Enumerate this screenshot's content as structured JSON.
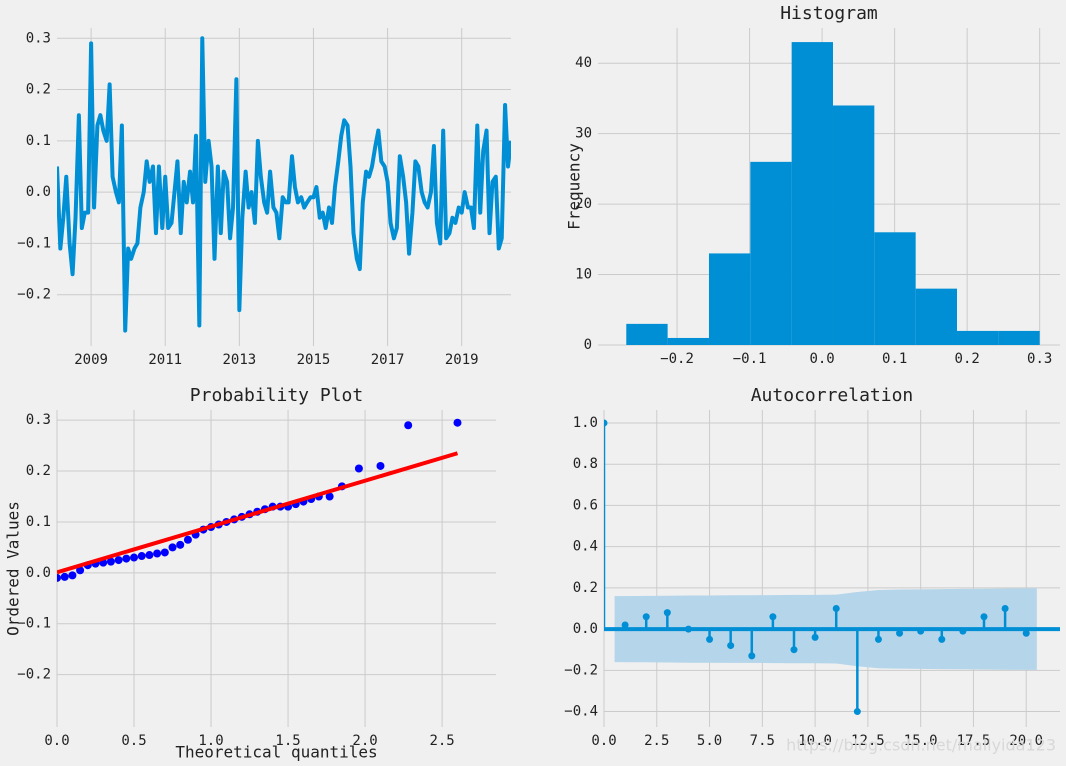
{
  "chart_data": [
    {
      "type": "line",
      "color": "#008fd5",
      "x": [
        2008.08,
        2008.17,
        2008.25,
        2008.33,
        2008.42,
        2008.5,
        2008.58,
        2008.67,
        2008.75,
        2008.83,
        2008.92,
        2009.0,
        2009.08,
        2009.17,
        2009.25,
        2009.33,
        2009.42,
        2009.5,
        2009.58,
        2009.67,
        2009.75,
        2009.83,
        2009.92,
        2010.0,
        2010.08,
        2010.17,
        2010.25,
        2010.33,
        2010.42,
        2010.5,
        2010.58,
        2010.67,
        2010.75,
        2010.83,
        2010.92,
        2011.0,
        2011.08,
        2011.17,
        2011.25,
        2011.33,
        2011.42,
        2011.5,
        2011.58,
        2011.67,
        2011.75,
        2011.83,
        2011.92,
        2012.0,
        2012.08,
        2012.17,
        2012.25,
        2012.33,
        2012.42,
        2012.5,
        2012.58,
        2012.67,
        2012.75,
        2012.83,
        2012.92,
        2013.0,
        2013.08,
        2013.17,
        2013.25,
        2013.33,
        2013.42,
        2013.5,
        2013.58,
        2013.67,
        2013.75,
        2013.83,
        2013.92,
        2014.0,
        2014.08,
        2014.17,
        2014.25,
        2014.33,
        2014.42,
        2014.5,
        2014.58,
        2014.67,
        2014.75,
        2014.83,
        2014.92,
        2015.0,
        2015.08,
        2015.17,
        2015.25,
        2015.33,
        2015.42,
        2015.5,
        2015.58,
        2015.67,
        2015.75,
        2015.83,
        2015.92,
        2016.0,
        2016.08,
        2016.17,
        2016.25,
        2016.33,
        2016.42,
        2016.5,
        2016.58,
        2016.67,
        2016.75,
        2016.83,
        2016.92,
        2017.0,
        2017.08,
        2017.17,
        2017.25,
        2017.33,
        2017.42,
        2017.5,
        2017.58,
        2017.67,
        2017.75,
        2017.83,
        2017.92,
        2018.0,
        2018.08,
        2018.17,
        2018.25,
        2018.33,
        2018.42,
        2018.5,
        2018.58,
        2018.67,
        2018.75,
        2018.83,
        2018.92,
        2019.0,
        2019.08,
        2019.17,
        2019.25,
        2019.33,
        2019.42,
        2019.5,
        2019.58,
        2019.67,
        2019.75,
        2019.83,
        2019.92,
        2020.0,
        2020.08,
        2020.17,
        2020.25,
        2020.33
      ],
      "values": [
        0.05,
        -0.11,
        -0.05,
        0.03,
        -0.1,
        -0.16,
        -0.05,
        0.15,
        -0.07,
        -0.04,
        -0.04,
        0.29,
        -0.03,
        0.13,
        0.15,
        0.12,
        0.1,
        0.21,
        0.03,
        0.0,
        -0.02,
        0.13,
        -0.27,
        -0.11,
        -0.13,
        -0.11,
        -0.1,
        -0.03,
        0.0,
        0.06,
        0.02,
        0.05,
        -0.08,
        0.05,
        -0.07,
        0.03,
        -0.07,
        -0.06,
        0.0,
        0.06,
        -0.08,
        0.02,
        -0.02,
        0.04,
        -0.02,
        0.11,
        -0.26,
        0.3,
        0.02,
        0.1,
        0.05,
        -0.13,
        0.05,
        -0.08,
        0.04,
        0.02,
        -0.09,
        -0.03,
        0.22,
        -0.23,
        -0.05,
        0.04,
        -0.03,
        0.0,
        -0.06,
        0.1,
        0.03,
        -0.02,
        -0.04,
        0.04,
        -0.03,
        -0.04,
        -0.09,
        -0.01,
        -0.02,
        -0.02,
        0.07,
        0.01,
        -0.02,
        -0.01,
        -0.03,
        -0.02,
        -0.01,
        -0.01,
        0.01,
        -0.05,
        -0.04,
        -0.07,
        -0.03,
        -0.06,
        0.01,
        0.06,
        0.11,
        0.14,
        0.13,
        0.05,
        -0.08,
        -0.13,
        -0.15,
        -0.02,
        0.04,
        0.03,
        0.05,
        0.09,
        0.12,
        0.06,
        0.05,
        0.02,
        -0.06,
        -0.09,
        -0.07,
        0.07,
        0.03,
        -0.02,
        -0.12,
        -0.04,
        0.06,
        0.05,
        0.0,
        -0.02,
        -0.03,
        0.0,
        0.09,
        -0.06,
        -0.1,
        0.12,
        -0.09,
        -0.08,
        -0.05,
        -0.06,
        -0.03,
        -0.04,
        0.0,
        -0.03,
        -0.03,
        -0.07,
        0.13,
        -0.04,
        0.08,
        0.12,
        -0.08,
        0.02,
        0.03,
        -0.11,
        -0.09,
        0.17,
        0.05,
        0.1
      ],
      "xlim": [
        2008.08,
        2020.33
      ],
      "ylim": [
        -0.3,
        0.32
      ],
      "xticks": [
        2009,
        2011,
        2013,
        2015,
        2017,
        2019
      ],
      "yticks": [
        {
          "value": -0.2,
          "label": "−0.2"
        },
        {
          "value": -0.1,
          "label": "−0.1"
        },
        {
          "value": 0,
          "label": "0.0"
        },
        0.1,
        0.2,
        0.3
      ],
      "grid": true
    },
    {
      "type": "histogram",
      "title": "Histogram",
      "ylabel": "Frequency",
      "color": "#008fd5",
      "bins": [
        -0.27,
        -0.213,
        -0.156,
        -0.099,
        -0.042,
        0.015,
        0.072,
        0.129,
        0.186,
        0.243,
        0.3
      ],
      "counts": [
        3,
        1,
        13,
        26,
        43,
        34,
        16,
        8,
        2,
        2
      ],
      "xlim": [
        -0.309,
        0.328
      ],
      "ylim": [
        0,
        45
      ],
      "xticks": [
        {
          "value": -0.2,
          "label": "−0.2"
        },
        {
          "value": -0.1,
          "label": "−0.1"
        },
        {
          "value": 0,
          "label": "0.0"
        },
        0.1,
        0.2,
        0.3
      ],
      "yticks": [
        0,
        10,
        20,
        30,
        40
      ],
      "grid": true
    },
    {
      "type": "scatter",
      "title": "Probability Plot",
      "xlabel": "Theoretical quantiles",
      "ylabel": "Ordered Values",
      "color": "#0000ff",
      "x": [
        0.0,
        0.05,
        0.1,
        0.15,
        0.2,
        0.25,
        0.3,
        0.35,
        0.4,
        0.45,
        0.5,
        0.55,
        0.6,
        0.65,
        0.7,
        0.75,
        0.8,
        0.85,
        0.9,
        0.95,
        1.0,
        1.05,
        1.1,
        1.15,
        1.2,
        1.25,
        1.3,
        1.35,
        1.4,
        1.45,
        1.5,
        1.55,
        1.6,
        1.65,
        1.7,
        1.77,
        1.85,
        1.96,
        2.1,
        2.28,
        2.6
      ],
      "values": [
        -0.01,
        -0.008,
        -0.005,
        0.005,
        0.015,
        0.018,
        0.02,
        0.022,
        0.025,
        0.028,
        0.03,
        0.033,
        0.035,
        0.038,
        0.04,
        0.05,
        0.055,
        0.065,
        0.075,
        0.085,
        0.09,
        0.095,
        0.1,
        0.105,
        0.11,
        0.115,
        0.12,
        0.125,
        0.13,
        0.13,
        0.13,
        0.135,
        0.14,
        0.145,
        0.15,
        0.15,
        0.17,
        0.205,
        0.21,
        0.29,
        0.295
      ],
      "fit": {
        "color": "#ff0000",
        "x": [
          0,
          2.6
        ],
        "values": [
          0.001,
          0.235
        ]
      },
      "xlim": [
        0,
        2.85
      ],
      "ylim": [
        -0.303,
        0.32
      ],
      "xticks": [
        {
          "value": 0,
          "label": "0.0"
        },
        0.5,
        {
          "value": 1,
          "label": "1.0"
        },
        1.5,
        {
          "value": 2,
          "label": "2.0"
        },
        2.5
      ],
      "yticks": [
        {
          "value": -0.2,
          "label": "−0.2"
        },
        {
          "value": -0.1,
          "label": "−0.1"
        },
        {
          "value": 0,
          "label": "0.0"
        },
        0.1,
        0.2,
        0.3
      ],
      "grid": true
    },
    {
      "type": "stem",
      "title": "Autocorrelation",
      "color": "#008fd5",
      "band_color": "#b4d5ea",
      "lags": [
        0,
        1,
        2,
        3,
        4,
        5,
        6,
        7,
        8,
        9,
        10,
        11,
        12,
        13,
        14,
        15,
        16,
        17,
        18,
        19,
        20
      ],
      "values": [
        1.0,
        0.02,
        0.06,
        0.08,
        0.0,
        -0.05,
        -0.08,
        -0.13,
        0.06,
        -0.1,
        -0.04,
        0.1,
        -0.4,
        -0.05,
        -0.02,
        -0.01,
        -0.05,
        -0.01,
        0.06,
        0.1,
        -0.02
      ],
      "band": [
        null,
        0.16,
        0.161,
        0.162,
        0.163,
        0.163,
        0.164,
        0.164,
        0.165,
        0.166,
        0.166,
        0.167,
        0.18,
        0.19,
        0.192,
        0.193,
        0.194,
        0.195,
        0.196,
        0.197,
        0.198
      ],
      "xlim": [
        0,
        21.6
      ],
      "ylim": [
        -0.475,
        1.063
      ],
      "xticks": [
        {
          "value": 0,
          "label": "0.0"
        },
        2.5,
        {
          "value": 5,
          "label": "5.0"
        },
        7.5,
        {
          "value": 10,
          "label": "10.0"
        },
        12.5,
        {
          "value": 15,
          "label": "15.0"
        },
        17.5,
        {
          "value": 20,
          "label": "20.0"
        }
      ],
      "yticks": [
        {
          "value": -0.4,
          "label": "−0.4"
        },
        {
          "value": -0.2,
          "label": "−0.2"
        },
        {
          "value": 0,
          "label": "0.0"
        },
        0.2,
        0.4,
        0.6,
        0.8,
        {
          "value": 1,
          "label": "1.0"
        }
      ],
      "grid": true
    }
  ],
  "watermark": "https://blog.csdn.net/mallyida123"
}
